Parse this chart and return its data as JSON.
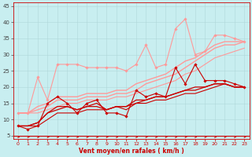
{
  "background_color": "#c8eef0",
  "grid_color": "#b0d8da",
  "xlabel": "Vent moyen/en rafales ( km/h )",
  "xlim": [
    -0.5,
    23.5
  ],
  "ylim": [
    4,
    46
  ],
  "yticks": [
    5,
    10,
    15,
    20,
    25,
    30,
    35,
    40,
    45
  ],
  "xticks": [
    0,
    1,
    2,
    3,
    4,
    5,
    6,
    7,
    8,
    9,
    10,
    11,
    12,
    13,
    14,
    15,
    16,
    17,
    18,
    19,
    20,
    21,
    22,
    23
  ],
  "series": [
    {
      "x": [
        0,
        1,
        2,
        3,
        4,
        5,
        6,
        7,
        8,
        9,
        10,
        11,
        12,
        13,
        14,
        15,
        16,
        17,
        18,
        19,
        20,
        21,
        22,
        23
      ],
      "y": [
        8,
        7,
        8,
        15,
        17,
        15,
        12,
        15,
        16,
        12,
        12,
        11,
        19,
        17,
        18,
        17,
        26,
        21,
        27,
        22,
        22,
        22,
        21,
        20
      ],
      "color": "#cc0000",
      "lw": 0.8,
      "marker": "D",
      "ms": 1.8,
      "zorder": 5
    },
    {
      "x": [
        0,
        1,
        2,
        3,
        4,
        5,
        6,
        7,
        8,
        9,
        10,
        11,
        12,
        13,
        14,
        15,
        16,
        17,
        18,
        19,
        20,
        21,
        22,
        23
      ],
      "y": [
        8,
        8,
        9,
        12,
        14,
        14,
        13,
        14,
        15,
        13,
        14,
        14,
        16,
        16,
        17,
        17,
        18,
        19,
        20,
        20,
        21,
        21,
        20,
        20
      ],
      "color": "#cc0000",
      "lw": 0.9,
      "marker": null,
      "ms": 0,
      "zorder": 4
    },
    {
      "x": [
        0,
        1,
        2,
        3,
        4,
        5,
        6,
        7,
        8,
        9,
        10,
        11,
        12,
        13,
        14,
        15,
        16,
        17,
        18,
        19,
        20,
        21,
        22,
        23
      ],
      "y": [
        8,
        8,
        9,
        12,
        13,
        14,
        13,
        14,
        14,
        13,
        14,
        14,
        15,
        16,
        17,
        17,
        18,
        19,
        19,
        20,
        21,
        21,
        20,
        20
      ],
      "color": "#cc0000",
      "lw": 0.9,
      "marker": null,
      "ms": 0,
      "zorder": 3
    },
    {
      "x": [
        0,
        1,
        2,
        3,
        4,
        5,
        6,
        7,
        8,
        9,
        10,
        11,
        12,
        13,
        14,
        15,
        16,
        17,
        18,
        19,
        20,
        21,
        22,
        23
      ],
      "y": [
        8,
        8,
        8,
        10,
        12,
        12,
        12,
        13,
        13,
        13,
        14,
        13,
        15,
        15,
        16,
        16,
        17,
        18,
        18,
        19,
        20,
        21,
        20,
        20
      ],
      "color": "#cc0000",
      "lw": 0.8,
      "marker": null,
      "ms": 0,
      "zorder": 2
    },
    {
      "x": [
        0,
        1,
        2,
        3,
        4,
        5,
        6,
        7,
        8,
        9,
        10,
        11,
        12,
        13,
        14,
        15,
        16,
        17,
        18,
        19,
        20,
        21,
        22,
        23
      ],
      "y": [
        12,
        12,
        23,
        16,
        27,
        27,
        27,
        26,
        26,
        26,
        26,
        25,
        27,
        33,
        26,
        27,
        38,
        41,
        30,
        31,
        36,
        36,
        35,
        34
      ],
      "color": "#ff9999",
      "lw": 0.8,
      "marker": "D",
      "ms": 1.8,
      "zorder": 5
    },
    {
      "x": [
        0,
        1,
        2,
        3,
        4,
        5,
        6,
        7,
        8,
        9,
        10,
        11,
        12,
        13,
        14,
        15,
        16,
        17,
        18,
        19,
        20,
        21,
        22,
        23
      ],
      "y": [
        12,
        12,
        14,
        15,
        17,
        17,
        17,
        18,
        18,
        18,
        19,
        19,
        21,
        22,
        23,
        24,
        26,
        28,
        29,
        31,
        33,
        34,
        34,
        34
      ],
      "color": "#ff9999",
      "lw": 1.0,
      "marker": null,
      "ms": 0,
      "zorder": 4
    },
    {
      "x": [
        0,
        1,
        2,
        3,
        4,
        5,
        6,
        7,
        8,
        9,
        10,
        11,
        12,
        13,
        14,
        15,
        16,
        17,
        18,
        19,
        20,
        21,
        22,
        23
      ],
      "y": [
        12,
        12,
        13,
        14,
        16,
        16,
        16,
        17,
        17,
        17,
        18,
        18,
        19,
        21,
        22,
        23,
        24,
        26,
        28,
        30,
        32,
        33,
        33,
        34
      ],
      "color": "#ff9999",
      "lw": 1.0,
      "marker": null,
      "ms": 0,
      "zorder": 3
    },
    {
      "x": [
        0,
        1,
        2,
        3,
        4,
        5,
        6,
        7,
        8,
        9,
        10,
        11,
        12,
        13,
        14,
        15,
        16,
        17,
        18,
        19,
        20,
        21,
        22,
        23
      ],
      "y": [
        12,
        12,
        12,
        13,
        14,
        15,
        15,
        16,
        16,
        16,
        17,
        17,
        18,
        19,
        20,
        21,
        22,
        24,
        25,
        27,
        29,
        30,
        31,
        32
      ],
      "color": "#ff9999",
      "lw": 0.8,
      "marker": null,
      "ms": 0,
      "zorder": 2
    }
  ],
  "wind_arrow_color": "#cc0000",
  "spine_color": "#cc0000",
  "tick_color_x": "#cc0000",
  "tick_color_y": "#444444",
  "xlabel_color": "#cc0000",
  "xlabel_fontsize": 5.5,
  "tick_fontsize_x": 4.5,
  "tick_fontsize_y": 5.0
}
